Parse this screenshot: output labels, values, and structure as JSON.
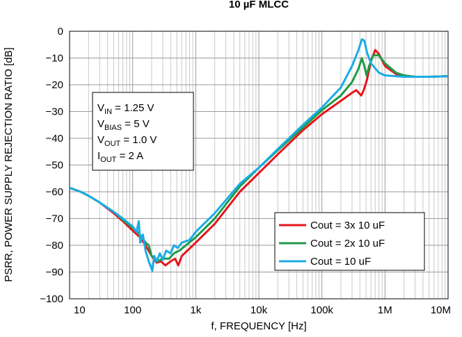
{
  "chart_data": {
    "type": "line",
    "title": "10 µF MLCC",
    "xlabel": "f, FREQUENCY [Hz]",
    "ylabel": "PSRR, POWER SUPPLY REJECTION RATIO [dB]",
    "xscale": "log",
    "xlim": [
      10,
      10000000
    ],
    "ylim": [
      -100,
      0
    ],
    "grid": true,
    "x_ticks": [
      {
        "value": 10,
        "label": "10"
      },
      {
        "value": 100,
        "label": "100"
      },
      {
        "value": 1000,
        "label": "1k"
      },
      {
        "value": 10000,
        "label": "10k"
      },
      {
        "value": 100000,
        "label": "100k"
      },
      {
        "value": 1000000,
        "label": "1M"
      },
      {
        "value": 10000000,
        "label": "10M"
      }
    ],
    "y_ticks": [
      {
        "value": 0,
        "label": "0"
      },
      {
        "value": -10,
        "label": "−10"
      },
      {
        "value": -20,
        "label": "−20"
      },
      {
        "value": -30,
        "label": "−30"
      },
      {
        "value": -40,
        "label": "−40"
      },
      {
        "value": -50,
        "label": "−50"
      },
      {
        "value": -60,
        "label": "−60"
      },
      {
        "value": -70,
        "label": "−70"
      },
      {
        "value": -80,
        "label": "−80"
      },
      {
        "value": -90,
        "label": "−90"
      },
      {
        "value": -100,
        "label": "−100"
      }
    ],
    "legend_position": "bottom-right",
    "conditions": [
      {
        "main": "V",
        "sub": "IN",
        "rest": " = 1.25 V"
      },
      {
        "main": "V",
        "sub": "BIAS",
        "rest": " = 5 V"
      },
      {
        "main": "V",
        "sub": "OUT",
        "rest": " = 1.0 V"
      },
      {
        "main": "I",
        "sub": "OUT",
        "rest": " = 2 A"
      }
    ],
    "series": [
      {
        "name": "Cout = 3x 10 uF",
        "color": "#e8141c",
        "points": [
          [
            10,
            -58.5
          ],
          [
            15,
            -60
          ],
          [
            20,
            -61.5
          ],
          [
            30,
            -64
          ],
          [
            50,
            -68
          ],
          [
            70,
            -71
          ],
          [
            100,
            -74.5
          ],
          [
            130,
            -77
          ],
          [
            160,
            -80
          ],
          [
            200,
            -84
          ],
          [
            240,
            -86.5
          ],
          [
            280,
            -86
          ],
          [
            330,
            -87.5
          ],
          [
            400,
            -86
          ],
          [
            470,
            -85
          ],
          [
            530,
            -87.5
          ],
          [
            600,
            -84
          ],
          [
            700,
            -82.5
          ],
          [
            1000,
            -79
          ],
          [
            2000,
            -72
          ],
          [
            5000,
            -60
          ],
          [
            10000,
            -53
          ],
          [
            20000,
            -46
          ],
          [
            50000,
            -37
          ],
          [
            100000,
            -31
          ],
          [
            200000,
            -26
          ],
          [
            300000,
            -23
          ],
          [
            350000,
            -22
          ],
          [
            420000,
            -24
          ],
          [
            460000,
            -22
          ],
          [
            520000,
            -18
          ],
          [
            600000,
            -11
          ],
          [
            700000,
            -7
          ],
          [
            800000,
            -8.5
          ],
          [
            1000000,
            -13
          ],
          [
            1500000,
            -16
          ],
          [
            2000000,
            -16.5
          ],
          [
            3000000,
            -17
          ],
          [
            5000000,
            -17
          ],
          [
            10000000,
            -16.8
          ]
        ]
      },
      {
        "name": "Cout = 2x 10 uF",
        "color": "#1f9a46",
        "points": [
          [
            10,
            -58.5
          ],
          [
            15,
            -60
          ],
          [
            20,
            -61.5
          ],
          [
            30,
            -64
          ],
          [
            50,
            -67.5
          ],
          [
            70,
            -70.5
          ],
          [
            100,
            -73.5
          ],
          [
            120,
            -75
          ],
          [
            140,
            -77
          ],
          [
            160,
            -79
          ],
          [
            180,
            -80
          ],
          [
            200,
            -84
          ],
          [
            250,
            -86
          ],
          [
            300,
            -85
          ],
          [
            380,
            -85
          ],
          [
            450,
            -83
          ],
          [
            550,
            -82
          ],
          [
            700,
            -80
          ],
          [
            1000,
            -77
          ],
          [
            2000,
            -70
          ],
          [
            5000,
            -58
          ],
          [
            10000,
            -51
          ],
          [
            20000,
            -44.5
          ],
          [
            50000,
            -36
          ],
          [
            100000,
            -29.5
          ],
          [
            200000,
            -24
          ],
          [
            300000,
            -19
          ],
          [
            380000,
            -14
          ],
          [
            430000,
            -10
          ],
          [
            470000,
            -13
          ],
          [
            510000,
            -16.5
          ],
          [
            560000,
            -13
          ],
          [
            650000,
            -9
          ],
          [
            800000,
            -9
          ],
          [
            1000000,
            -12
          ],
          [
            1500000,
            -15.5
          ],
          [
            2000000,
            -16.5
          ],
          [
            3000000,
            -17
          ],
          [
            5000000,
            -17
          ],
          [
            10000000,
            -16.8
          ]
        ]
      },
      {
        "name": "Cout = 10 uF",
        "color": "#1aace6",
        "points": [
          [
            10,
            -58.5
          ],
          [
            15,
            -60
          ],
          [
            20,
            -61.5
          ],
          [
            30,
            -64
          ],
          [
            50,
            -67.5
          ],
          [
            70,
            -70
          ],
          [
            100,
            -73
          ],
          [
            115,
            -75
          ],
          [
            125,
            -71
          ],
          [
            132,
            -79
          ],
          [
            145,
            -76
          ],
          [
            160,
            -82
          ],
          [
            180,
            -86
          ],
          [
            205,
            -89.5
          ],
          [
            220,
            -84
          ],
          [
            240,
            -86
          ],
          [
            270,
            -83
          ],
          [
            300,
            -85.5
          ],
          [
            340,
            -82
          ],
          [
            400,
            -83
          ],
          [
            450,
            -80
          ],
          [
            520,
            -81
          ],
          [
            600,
            -79
          ],
          [
            800,
            -78
          ],
          [
            1000,
            -75
          ],
          [
            2000,
            -68
          ],
          [
            5000,
            -57
          ],
          [
            10000,
            -51
          ],
          [
            20000,
            -44
          ],
          [
            50000,
            -35
          ],
          [
            100000,
            -28.5
          ],
          [
            200000,
            -21
          ],
          [
            300000,
            -13
          ],
          [
            380000,
            -7
          ],
          [
            430000,
            -3
          ],
          [
            470000,
            -3.5
          ],
          [
            520000,
            -8
          ],
          [
            600000,
            -12
          ],
          [
            800000,
            -15.5
          ],
          [
            1000000,
            -16.5
          ],
          [
            2000000,
            -17
          ],
          [
            3000000,
            -17
          ],
          [
            5000000,
            -17
          ],
          [
            10000000,
            -16.8
          ]
        ]
      }
    ]
  }
}
